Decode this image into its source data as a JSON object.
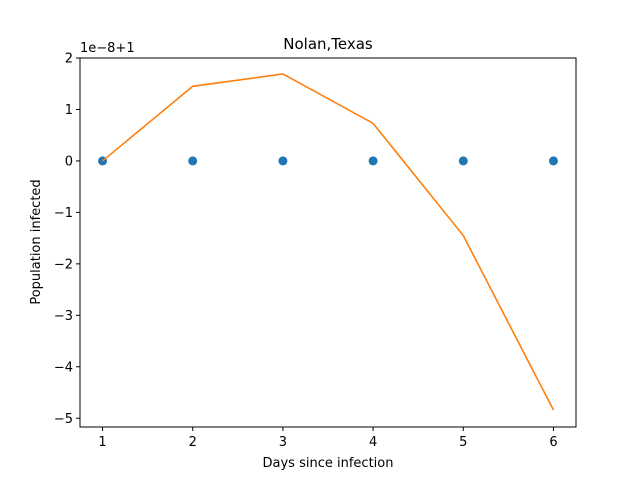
{
  "chart_data": {
    "type": "line",
    "title": "Nolan,Texas",
    "xlabel": "Days since infection",
    "ylabel": "Population infected",
    "offset_label": "1e−8+1",
    "xlim": [
      0.75,
      6.25
    ],
    "ylim": [
      -5.17,
      2.0
    ],
    "x_ticks": [
      1,
      2,
      3,
      4,
      5,
      6
    ],
    "x_tick_labels": [
      "1",
      "2",
      "3",
      "4",
      "5",
      "6"
    ],
    "y_ticks": [
      2,
      1,
      0,
      -1,
      -2,
      -3,
      -4,
      -5
    ],
    "y_tick_labels": [
      "2",
      "1",
      "0",
      "−1",
      "−2",
      "−3",
      "−4",
      "−5"
    ],
    "grid": false,
    "legend": "none",
    "series": [
      {
        "kind": "scatter",
        "color": "#1f77b4",
        "x": [
          1,
          2,
          3,
          4,
          5,
          6
        ],
        "y": [
          0,
          0,
          0,
          0,
          0,
          0
        ]
      },
      {
        "kind": "line",
        "color": "#ff7f0e",
        "x": [
          1,
          2,
          3,
          4,
          5,
          6
        ],
        "y": [
          0.0,
          1.45,
          1.69,
          0.73,
          -1.45,
          -4.84
        ]
      }
    ]
  }
}
